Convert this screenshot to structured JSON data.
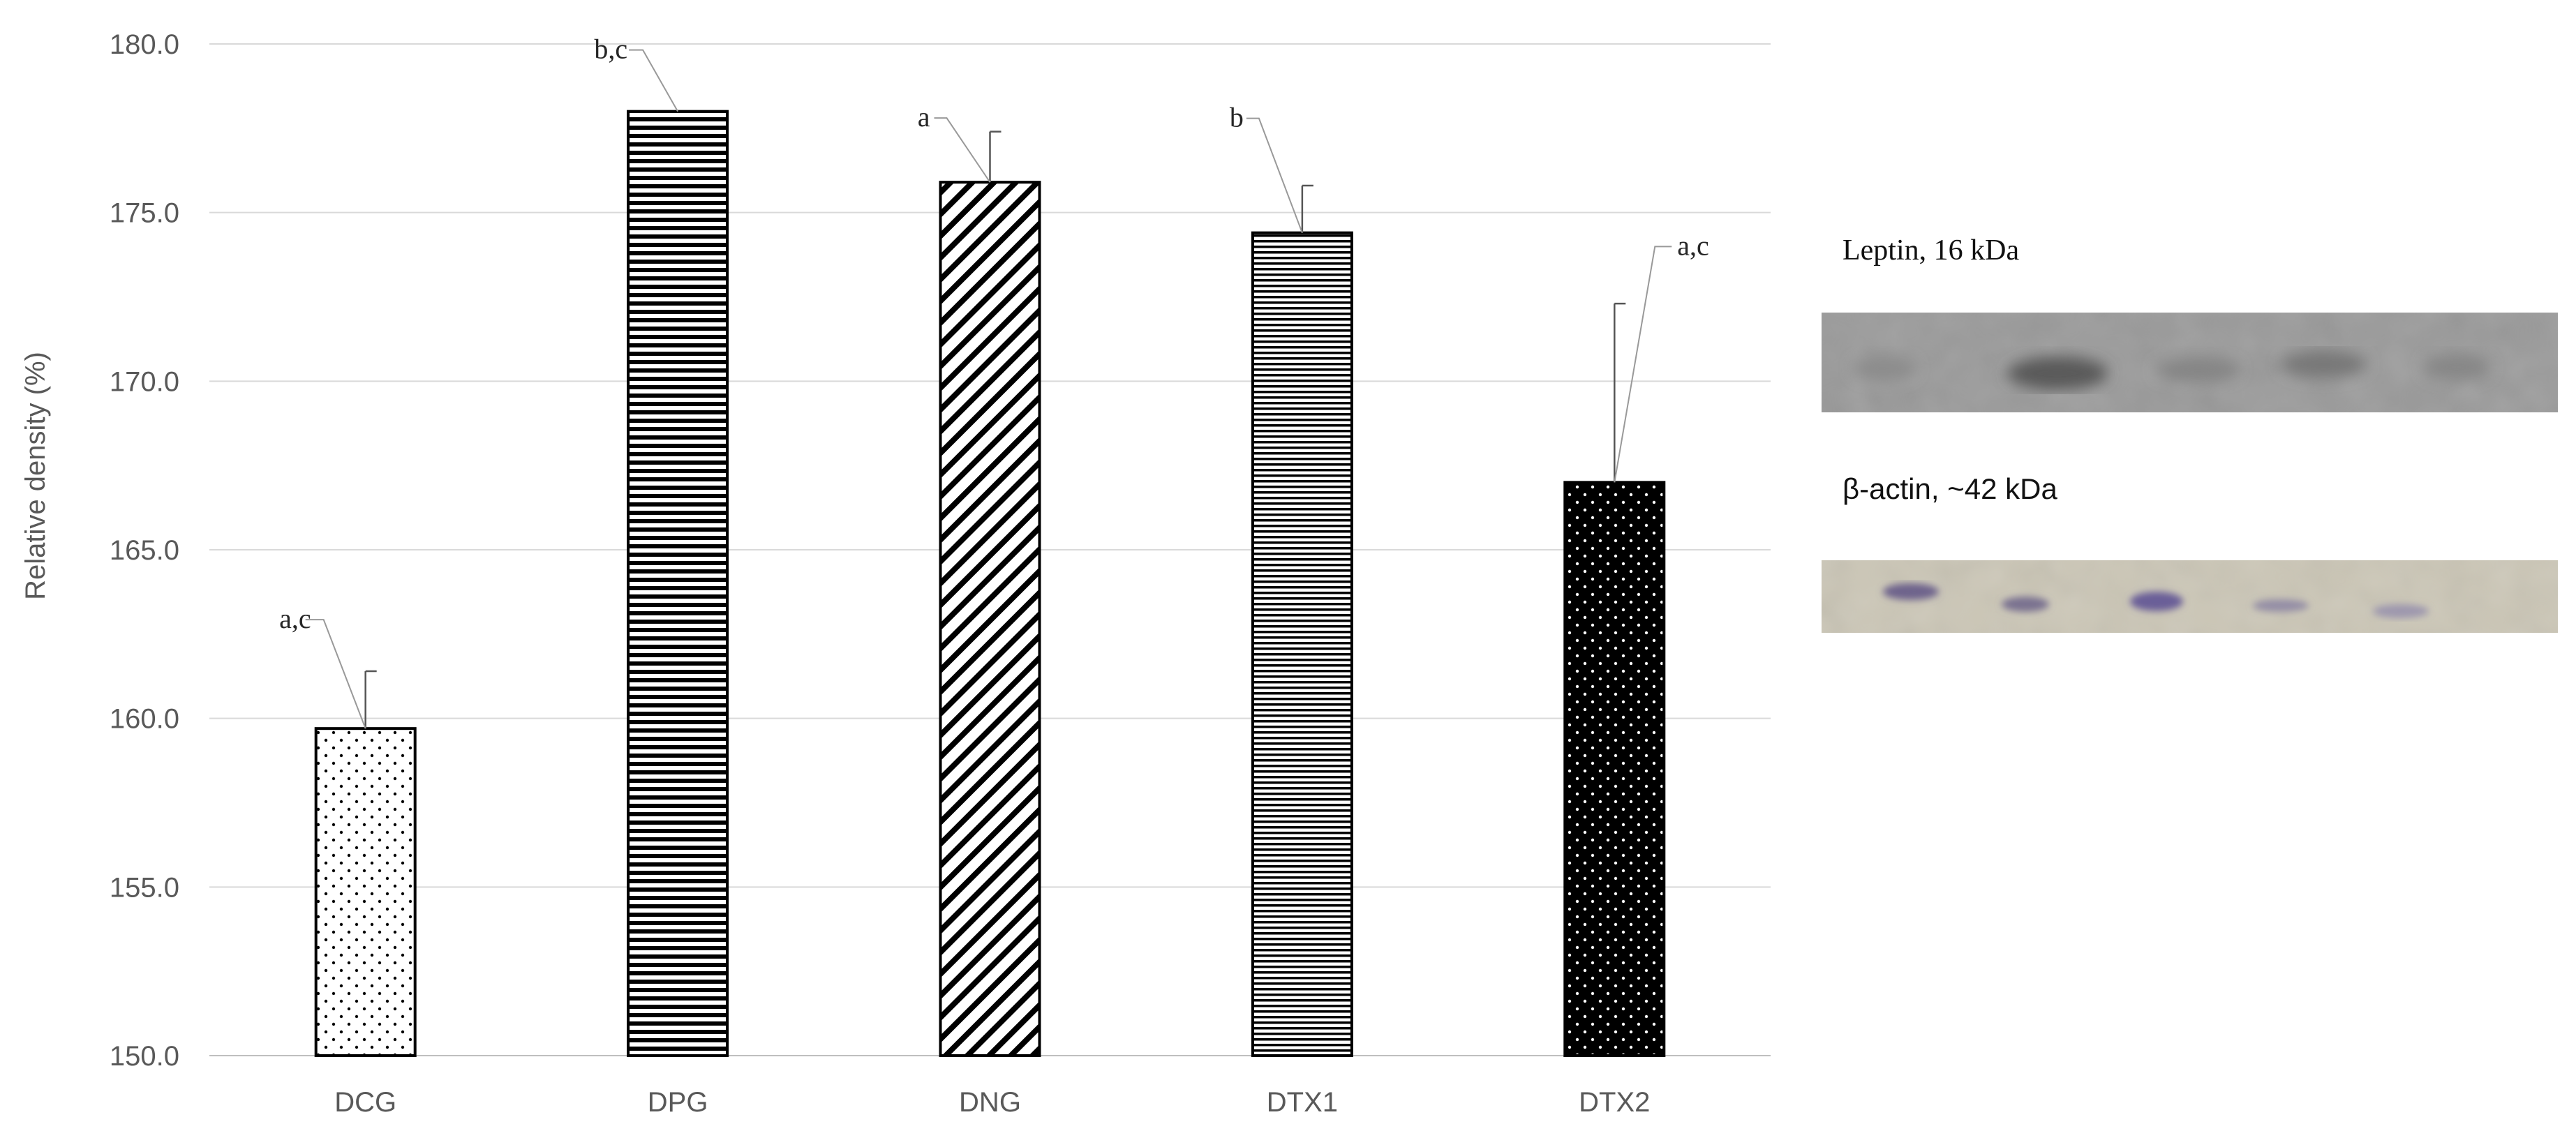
{
  "chart_data": {
    "type": "bar",
    "categories": [
      "DCG",
      "DPG",
      "DNG",
      "DTX1",
      "DTX2"
    ],
    "values": [
      159.7,
      178.0,
      175.9,
      174.4,
      167.0
    ],
    "error_plus": [
      1.7,
      0.0,
      1.5,
      1.4,
      5.3
    ],
    "annotations": [
      "a,c",
      "b,c",
      "a",
      "b",
      "a,c"
    ],
    "patterns": [
      "sparse-dots",
      "horizontal-lines",
      "diagonal-lines",
      "fine-horizontal-lines",
      "white-dots-on-black"
    ],
    "ylabel": "Relative density (%)",
    "ylim": [
      150.0,
      180.0
    ],
    "yticks": [
      "150.0",
      "155.0",
      "160.0",
      "165.0",
      "170.0",
      "175.0",
      "180.0"
    ],
    "grid": true
  },
  "blots": [
    {
      "label": "Leptin, 16 kDa",
      "background": "#9a9a9a"
    },
    {
      "label": "β-actin, ~42 kDa",
      "background": "#cbc6b6"
    }
  ],
  "colors": {
    "grid": "#d9d9d9",
    "axis_text": "#595959",
    "bar_outline": "#000000"
  }
}
